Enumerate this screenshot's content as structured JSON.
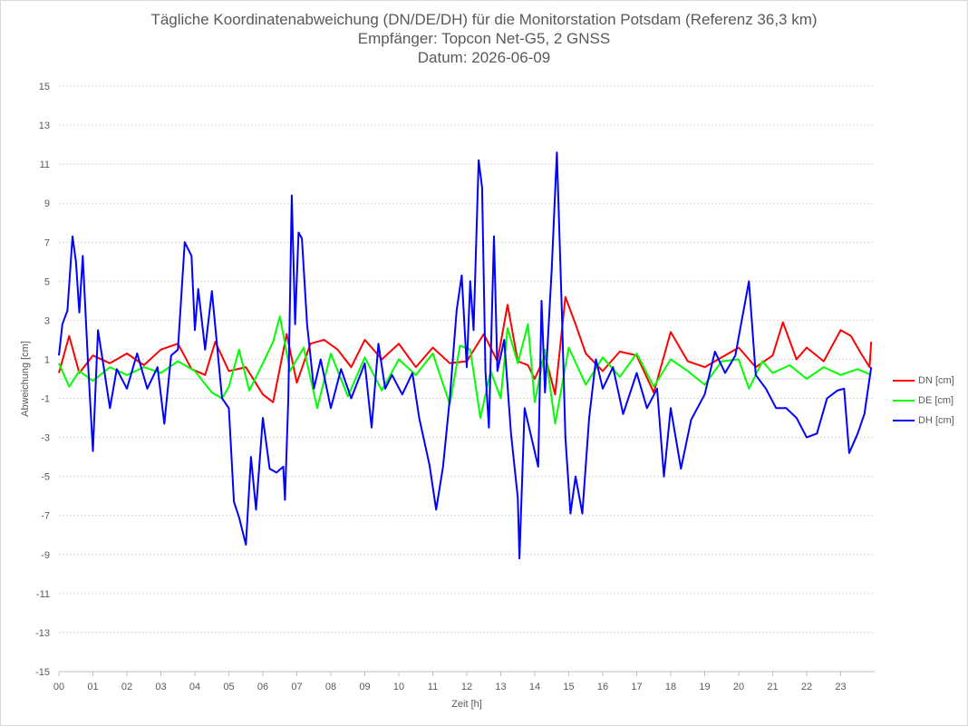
{
  "chart_data": {
    "type": "line",
    "title": "Tägliche Koordinatenabweichung (DN/DE/DH) für die Monitorstation Potsdam (Referenz 36,3 km)",
    "subtitle": "Empfänger: Topcon Net-G5, 2 GNSS",
    "date_line": "Datum: 2026-06-09",
    "xlabel": "Zeit [h]",
    "ylabel": "Abweichung [cm]",
    "x_ticks": [
      "00",
      "01",
      "02",
      "03",
      "04",
      "05",
      "06",
      "07",
      "08",
      "09",
      "10",
      "11",
      "12",
      "13",
      "14",
      "15",
      "16",
      "17",
      "18",
      "19",
      "20",
      "21",
      "22",
      "23"
    ],
    "y_ticks": [
      15,
      13,
      11,
      9,
      7,
      5,
      3,
      1,
      -1,
      -3,
      -5,
      -7,
      -9,
      -11,
      -13,
      -15
    ],
    "ylim": [
      -15,
      15
    ],
    "xlim": [
      0,
      24
    ],
    "grid": "horizontal dotted",
    "legend_position": "right",
    "series": [
      {
        "name": "DN [cm]",
        "color": "#ff0000",
        "points": [
          [
            0,
            0.3
          ],
          [
            0.3,
            2.2
          ],
          [
            0.6,
            0.3
          ],
          [
            1,
            1.2
          ],
          [
            1.5,
            0.8
          ],
          [
            2,
            1.3
          ],
          [
            2.5,
            0.7
          ],
          [
            3,
            1.5
          ],
          [
            3.5,
            1.8
          ],
          [
            3.9,
            0.5
          ],
          [
            4.3,
            0.2
          ],
          [
            4.6,
            1.9
          ],
          [
            5,
            0.4
          ],
          [
            5.5,
            0.6
          ],
          [
            6,
            -0.8
          ],
          [
            6.3,
            -1.2
          ],
          [
            6.7,
            2.3
          ],
          [
            7,
            -0.2
          ],
          [
            7.4,
            1.8
          ],
          [
            7.8,
            2.0
          ],
          [
            8.2,
            1.5
          ],
          [
            8.6,
            0.6
          ],
          [
            9,
            2.0
          ],
          [
            9.5,
            1.0
          ],
          [
            10,
            1.8
          ],
          [
            10.5,
            0.6
          ],
          [
            11,
            1.6
          ],
          [
            11.5,
            0.8
          ],
          [
            12,
            0.9
          ],
          [
            12.5,
            2.3
          ],
          [
            12.9,
            0.9
          ],
          [
            13.2,
            3.8
          ],
          [
            13.5,
            0.9
          ],
          [
            13.8,
            0.7
          ],
          [
            14,
            0.0
          ],
          [
            14.3,
            1.2
          ],
          [
            14.6,
            -0.8
          ],
          [
            14.9,
            4.2
          ],
          [
            15.2,
            2.8
          ],
          [
            15.5,
            1.3
          ],
          [
            16,
            0.4
          ],
          [
            16.5,
            1.4
          ],
          [
            17,
            1.2
          ],
          [
            17.5,
            -0.7
          ],
          [
            18,
            2.4
          ],
          [
            18.5,
            0.9
          ],
          [
            19,
            0.6
          ],
          [
            19.5,
            1.1
          ],
          [
            20,
            1.6
          ],
          [
            20.5,
            0.6
          ],
          [
            21,
            1.2
          ],
          [
            21.3,
            2.9
          ],
          [
            21.7,
            1.0
          ],
          [
            22,
            1.6
          ],
          [
            22.5,
            0.9
          ],
          [
            23,
            2.5
          ],
          [
            23.3,
            2.2
          ],
          [
            23.6,
            1.3
          ],
          [
            23.85,
            0.6
          ],
          [
            23.9,
            1.9
          ]
        ]
      },
      {
        "name": "DE [cm]",
        "color": "#00ff00",
        "points": [
          [
            0,
            0.8
          ],
          [
            0.3,
            -0.4
          ],
          [
            0.6,
            0.4
          ],
          [
            1,
            -0.1
          ],
          [
            1.5,
            0.6
          ],
          [
            2,
            0.2
          ],
          [
            2.5,
            0.6
          ],
          [
            3,
            0.3
          ],
          [
            3.5,
            0.9
          ],
          [
            4,
            0.4
          ],
          [
            4.5,
            -0.7
          ],
          [
            4.8,
            -1.0
          ],
          [
            5,
            -0.4
          ],
          [
            5.3,
            1.5
          ],
          [
            5.6,
            -0.6
          ],
          [
            6,
            0.8
          ],
          [
            6.3,
            1.9
          ],
          [
            6.5,
            3.2
          ],
          [
            6.8,
            0.4
          ],
          [
            7.2,
            1.6
          ],
          [
            7.6,
            -1.5
          ],
          [
            8,
            1.3
          ],
          [
            8.5,
            -0.9
          ],
          [
            9,
            1.1
          ],
          [
            9.5,
            -0.6
          ],
          [
            10,
            1.0
          ],
          [
            10.5,
            0.2
          ],
          [
            11,
            1.3
          ],
          [
            11.5,
            -1.3
          ],
          [
            11.8,
            1.7
          ],
          [
            12.1,
            1.5
          ],
          [
            12.4,
            -2.0
          ],
          [
            12.7,
            0.4
          ],
          [
            13,
            -1.0
          ],
          [
            13.2,
            2.6
          ],
          [
            13.5,
            0.8
          ],
          [
            13.8,
            2.8
          ],
          [
            14,
            -1.2
          ],
          [
            14.3,
            1.5
          ],
          [
            14.6,
            -2.3
          ],
          [
            15,
            1.6
          ],
          [
            15.5,
            -0.3
          ],
          [
            16,
            1.1
          ],
          [
            16.5,
            0.1
          ],
          [
            17,
            1.3
          ],
          [
            17.5,
            -0.4
          ],
          [
            18,
            1.0
          ],
          [
            18.5,
            0.4
          ],
          [
            19,
            -0.3
          ],
          [
            19.5,
            0.9
          ],
          [
            20,
            1.0
          ],
          [
            20.3,
            -0.5
          ],
          [
            20.7,
            0.9
          ],
          [
            21,
            0.3
          ],
          [
            21.5,
            0.7
          ],
          [
            22,
            0.0
          ],
          [
            22.5,
            0.6
          ],
          [
            23,
            0.2
          ],
          [
            23.5,
            0.5
          ],
          [
            23.9,
            0.2
          ]
        ]
      },
      {
        "name": "DH [cm]",
        "color": "#0000ff",
        "points": [
          [
            0,
            1.2
          ],
          [
            0.1,
            2.8
          ],
          [
            0.25,
            3.5
          ],
          [
            0.4,
            7.3
          ],
          [
            0.5,
            6.0
          ],
          [
            0.6,
            3.4
          ],
          [
            0.7,
            6.3
          ],
          [
            0.85,
            1.0
          ],
          [
            1,
            -3.7
          ],
          [
            1.15,
            2.5
          ],
          [
            1.3,
            0.8
          ],
          [
            1.5,
            -1.5
          ],
          [
            1.7,
            0.5
          ],
          [
            2,
            -0.5
          ],
          [
            2.3,
            1.3
          ],
          [
            2.6,
            -0.5
          ],
          [
            2.9,
            0.6
          ],
          [
            3.1,
            -2.3
          ],
          [
            3.3,
            1.2
          ],
          [
            3.5,
            1.5
          ],
          [
            3.7,
            7.0
          ],
          [
            3.9,
            6.3
          ],
          [
            4,
            2.5
          ],
          [
            4.1,
            4.6
          ],
          [
            4.3,
            1.5
          ],
          [
            4.5,
            4.5
          ],
          [
            4.8,
            -1.0
          ],
          [
            5,
            -1.5
          ],
          [
            5.15,
            -6.3
          ],
          [
            5.3,
            -7.1
          ],
          [
            5.5,
            -8.5
          ],
          [
            5.65,
            -4.0
          ],
          [
            5.8,
            -6.7
          ],
          [
            6,
            -2.0
          ],
          [
            6.2,
            -4.6
          ],
          [
            6.4,
            -4.8
          ],
          [
            6.6,
            -4.5
          ],
          [
            6.65,
            -6.2
          ],
          [
            6.75,
            -1.0
          ],
          [
            6.85,
            9.4
          ],
          [
            6.95,
            2.8
          ],
          [
            7.05,
            7.5
          ],
          [
            7.15,
            7.2
          ],
          [
            7.3,
            2.8
          ],
          [
            7.5,
            -0.5
          ],
          [
            7.7,
            1.0
          ],
          [
            8,
            -1.5
          ],
          [
            8.3,
            0.5
          ],
          [
            8.6,
            -1.0
          ],
          [
            9,
            0.8
          ],
          [
            9.2,
            -2.5
          ],
          [
            9.4,
            1.8
          ],
          [
            9.6,
            -0.5
          ],
          [
            9.8,
            0.2
          ],
          [
            10.1,
            -0.8
          ],
          [
            10.4,
            0.3
          ],
          [
            10.6,
            -2.0
          ],
          [
            10.9,
            -4.4
          ],
          [
            11.1,
            -6.7
          ],
          [
            11.3,
            -4.5
          ],
          [
            11.5,
            -1.0
          ],
          [
            11.7,
            3.5
          ],
          [
            11.85,
            5.3
          ],
          [
            12,
            0.6
          ],
          [
            12.1,
            5.0
          ],
          [
            12.2,
            2.5
          ],
          [
            12.35,
            11.2
          ],
          [
            12.45,
            9.8
          ],
          [
            12.55,
            0.4
          ],
          [
            12.65,
            -2.5
          ],
          [
            12.8,
            7.3
          ],
          [
            12.9,
            0.4
          ],
          [
            13.1,
            2.0
          ],
          [
            13.3,
            -2.8
          ],
          [
            13.5,
            -6.1
          ],
          [
            13.55,
            -9.2
          ],
          [
            13.7,
            -1.5
          ],
          [
            13.9,
            -3.0
          ],
          [
            14.1,
            -4.5
          ],
          [
            14.2,
            4.0
          ],
          [
            14.3,
            -0.7
          ],
          [
            14.5,
            5.7
          ],
          [
            14.65,
            11.6
          ],
          [
            14.8,
            3.3
          ],
          [
            14.9,
            -3.0
          ],
          [
            15.05,
            -6.9
          ],
          [
            15.2,
            -5.0
          ],
          [
            15.4,
            -6.9
          ],
          [
            15.6,
            -2.0
          ],
          [
            15.8,
            1.0
          ],
          [
            16,
            -0.5
          ],
          [
            16.3,
            0.6
          ],
          [
            16.6,
            -1.8
          ],
          [
            17,
            0.3
          ],
          [
            17.3,
            -1.5
          ],
          [
            17.6,
            -0.5
          ],
          [
            17.8,
            -5.0
          ],
          [
            18,
            -1.5
          ],
          [
            18.3,
            -4.6
          ],
          [
            18.6,
            -2.1
          ],
          [
            19,
            -0.8
          ],
          [
            19.3,
            1.4
          ],
          [
            19.6,
            0.3
          ],
          [
            19.9,
            1.2
          ],
          [
            20.1,
            3.1
          ],
          [
            20.3,
            5.0
          ],
          [
            20.5,
            0.2
          ],
          [
            20.8,
            -0.5
          ],
          [
            21.1,
            -1.5
          ],
          [
            21.4,
            -1.5
          ],
          [
            21.7,
            -2.0
          ],
          [
            22,
            -3.0
          ],
          [
            22.3,
            -2.8
          ],
          [
            22.6,
            -1.0
          ],
          [
            22.9,
            -0.6
          ],
          [
            23.1,
            -0.5
          ],
          [
            23.25,
            -3.8
          ],
          [
            23.5,
            -2.8
          ],
          [
            23.7,
            -1.8
          ],
          [
            23.9,
            0.6
          ]
        ]
      }
    ]
  }
}
